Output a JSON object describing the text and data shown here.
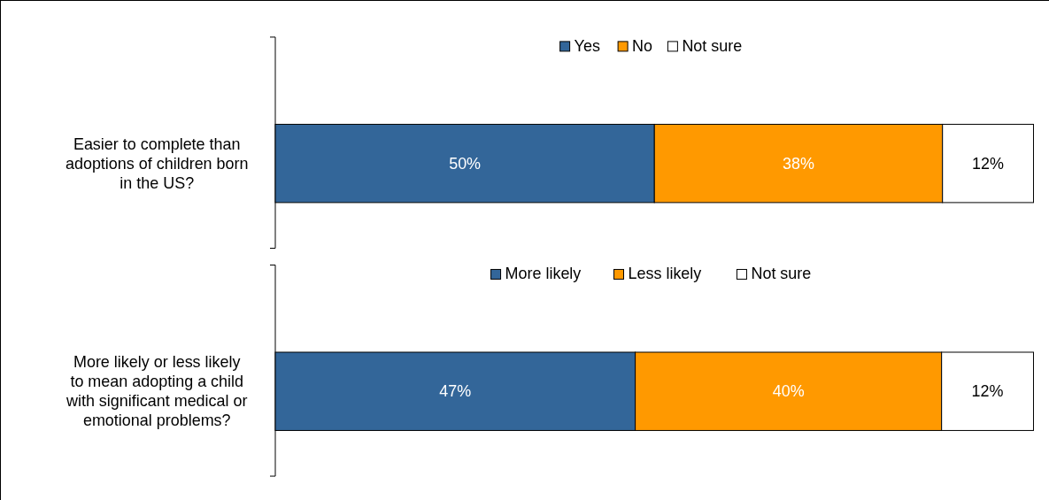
{
  "chart_data": [
    {
      "type": "bar",
      "orientation": "horizontal",
      "stacked": true,
      "categories": [
        "Easier to complete than adoptions of children born in the US?"
      ],
      "series": [
        {
          "name": "Yes",
          "color": "#336699",
          "values": [
            50
          ],
          "value_labels": [
            "50%"
          ]
        },
        {
          "name": "No",
          "color": "#ff9900",
          "values": [
            38
          ],
          "value_labels": [
            "38%"
          ]
        },
        {
          "name": "Not sure",
          "color": "#ffffff",
          "values": [
            12
          ],
          "value_labels": [
            "12%"
          ]
        }
      ],
      "legend": "top"
    },
    {
      "type": "bar",
      "orientation": "horizontal",
      "stacked": true,
      "categories": [
        "More likely or less likely to mean adopting a child with significant medical or emotional problems?"
      ],
      "series": [
        {
          "name": "More likely",
          "color": "#336699",
          "values": [
            47
          ],
          "value_labels": [
            "47%"
          ]
        },
        {
          "name": "Less likely",
          "color": "#ff9900",
          "values": [
            40
          ],
          "value_labels": [
            "40%"
          ]
        },
        {
          "name": "Not sure",
          "color": "#ffffff",
          "values": [
            12
          ],
          "value_labels": [
            "12%"
          ]
        }
      ],
      "legend": "top"
    }
  ]
}
